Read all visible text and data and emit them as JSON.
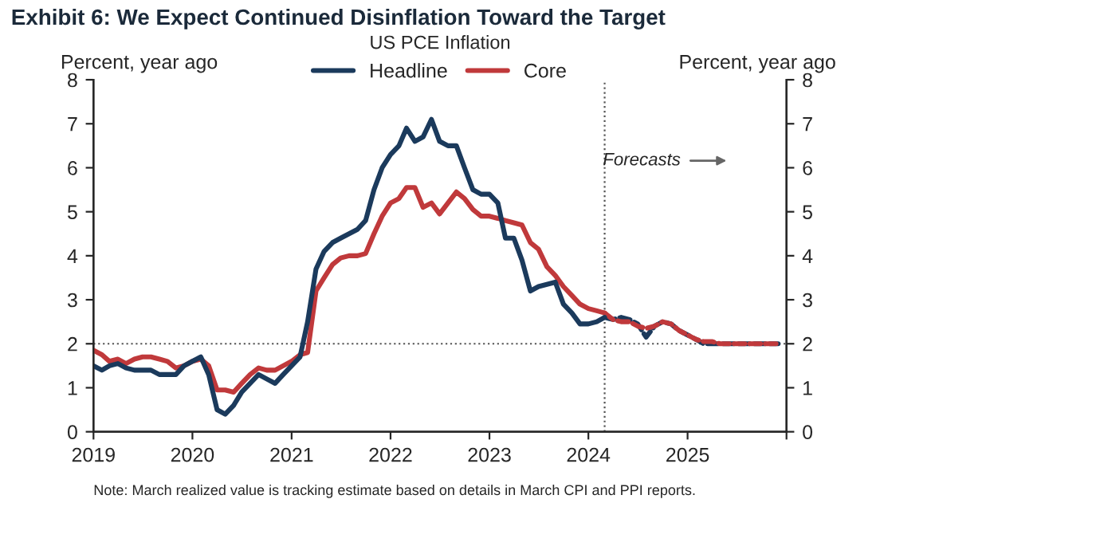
{
  "chart_data": {
    "type": "line",
    "title": "Exhibit 6: We Expect Continued Disinflation Toward the Target",
    "subtitle": "US PCE Inflation",
    "ylabel": "Percent, year ago",
    "y2label": "Percent, year ago",
    "annotations": [
      "Forecasts",
      "Note: March realized value is tracking estimate based on details in March CPI and PPI reports."
    ],
    "series": [
      {
        "name": "Headline",
        "color": "#1b3a5c",
        "line_style": "solid",
        "x": [
          "2019-01",
          "2019-02",
          "2019-03",
          "2019-04",
          "2019-05",
          "2019-06",
          "2019-07",
          "2019-08",
          "2019-09",
          "2019-10",
          "2019-11",
          "2019-12",
          "2020-01",
          "2020-02",
          "2020-03",
          "2020-04",
          "2020-05",
          "2020-06",
          "2020-07",
          "2020-08",
          "2020-09",
          "2020-10",
          "2020-11",
          "2020-12",
          "2021-01",
          "2021-02",
          "2021-03",
          "2021-04",
          "2021-05",
          "2021-06",
          "2021-07",
          "2021-08",
          "2021-09",
          "2021-10",
          "2021-11",
          "2021-12",
          "2022-01",
          "2022-02",
          "2022-03",
          "2022-04",
          "2022-05",
          "2022-06",
          "2022-07",
          "2022-08",
          "2022-09",
          "2022-10",
          "2022-11",
          "2022-12",
          "2023-01",
          "2023-02",
          "2023-03",
          "2023-04",
          "2023-05",
          "2023-06",
          "2023-07",
          "2023-08",
          "2023-09",
          "2023-10",
          "2023-11",
          "2023-12",
          "2024-01",
          "2024-02",
          "2024-03"
        ],
        "values": [
          1.5,
          1.4,
          1.5,
          1.55,
          1.45,
          1.4,
          1.4,
          1.4,
          1.3,
          1.3,
          1.3,
          1.5,
          1.6,
          1.7,
          1.3,
          0.5,
          0.4,
          0.6,
          0.9,
          1.1,
          1.3,
          1.2,
          1.1,
          1.3,
          1.5,
          1.7,
          2.5,
          3.7,
          4.1,
          4.3,
          4.4,
          4.5,
          4.6,
          4.8,
          5.5,
          6.0,
          6.3,
          6.5,
          6.9,
          6.6,
          6.7,
          7.1,
          6.6,
          6.5,
          6.5,
          6.0,
          5.5,
          5.4,
          5.4,
          5.2,
          4.4,
          4.4,
          3.9,
          3.2,
          3.3,
          3.35,
          3.4,
          2.9,
          2.7,
          2.45,
          2.45,
          2.5,
          2.6
        ]
      },
      {
        "name": "Core",
        "color": "#c0393b",
        "line_style": "solid",
        "x": [
          "2019-01",
          "2019-02",
          "2019-03",
          "2019-04",
          "2019-05",
          "2019-06",
          "2019-07",
          "2019-08",
          "2019-09",
          "2019-10",
          "2019-11",
          "2019-12",
          "2020-01",
          "2020-02",
          "2020-03",
          "2020-04",
          "2020-05",
          "2020-06",
          "2020-07",
          "2020-08",
          "2020-09",
          "2020-10",
          "2020-11",
          "2020-12",
          "2021-01",
          "2021-02",
          "2021-03",
          "2021-04",
          "2021-05",
          "2021-06",
          "2021-07",
          "2021-08",
          "2021-09",
          "2021-10",
          "2021-11",
          "2021-12",
          "2022-01",
          "2022-02",
          "2022-03",
          "2022-04",
          "2022-05",
          "2022-06",
          "2022-07",
          "2022-08",
          "2022-09",
          "2022-10",
          "2022-11",
          "2022-12",
          "2023-01",
          "2023-02",
          "2023-03",
          "2023-04",
          "2023-05",
          "2023-06",
          "2023-07",
          "2023-08",
          "2023-09",
          "2023-10",
          "2023-11",
          "2023-12",
          "2024-01",
          "2024-02",
          "2024-03"
        ],
        "values": [
          1.85,
          1.75,
          1.6,
          1.65,
          1.55,
          1.65,
          1.7,
          1.7,
          1.65,
          1.6,
          1.45,
          1.5,
          1.6,
          1.65,
          1.5,
          0.95,
          0.95,
          0.9,
          1.1,
          1.3,
          1.45,
          1.4,
          1.4,
          1.5,
          1.6,
          1.75,
          1.8,
          3.2,
          3.5,
          3.8,
          3.95,
          4.0,
          4.0,
          4.05,
          4.5,
          4.9,
          5.2,
          5.3,
          5.55,
          5.55,
          5.1,
          5.2,
          4.95,
          5.2,
          5.45,
          5.3,
          5.05,
          4.9,
          4.9,
          4.85,
          4.8,
          4.75,
          4.7,
          4.3,
          4.15,
          3.75,
          3.55,
          3.3,
          3.1,
          2.9,
          2.8,
          2.75,
          2.7
        ]
      },
      {
        "color": "#c0393b",
        "line_style": "dashed",
        "x": [
          "2024-03",
          "2024-04",
          "2024-05",
          "2024-06",
          "2024-07",
          "2024-08",
          "2024-09",
          "2024-10",
          "2024-11",
          "2024-12",
          "2025-01",
          "2025-02",
          "2025-03",
          "2025-04",
          "2025-05",
          "2025-06",
          "2025-07",
          "2025-08",
          "2025-09",
          "2025-10",
          "2025-11",
          "2025-12"
        ],
        "values": [
          2.7,
          2.55,
          2.5,
          2.5,
          2.4,
          2.35,
          2.4,
          2.5,
          2.45,
          2.3,
          2.2,
          2.1,
          2.05,
          2.05,
          2.0,
          2.0,
          2.0,
          2.0,
          2.0,
          2.0,
          2.0,
          2.0
        ]
      },
      {
        "color": "#1b3a5c",
        "line_style": "dashed",
        "x": [
          "2024-03",
          "2024-04",
          "2024-05",
          "2024-06",
          "2024-07",
          "2024-08",
          "2024-09",
          "2024-10",
          "2024-11",
          "2024-12",
          "2025-01",
          "2025-02",
          "2025-03",
          "2025-04",
          "2025-05",
          "2025-06",
          "2025-07",
          "2025-08",
          "2025-09",
          "2025-10",
          "2025-11",
          "2025-12"
        ],
        "values": [
          2.6,
          2.55,
          2.6,
          2.55,
          2.45,
          2.15,
          2.4,
          2.5,
          2.45,
          2.3,
          2.2,
          2.1,
          2.0,
          2.0,
          2.0,
          2.0,
          2.0,
          2.0,
          2.0,
          2.0,
          2.0,
          2.0
        ]
      }
    ],
    "xlim": [
      "2019",
      "2026"
    ],
    "xticks": [
      "2019",
      "2020",
      "2021",
      "2022",
      "2023",
      "2024",
      "2025",
      {
        "value": "2026",
        "label": null
      }
    ],
    "ylim": [
      0,
      8
    ],
    "yticks": [
      0,
      1,
      2,
      3,
      4,
      5,
      6,
      7,
      8
    ],
    "y2lim": [
      0,
      8
    ],
    "y2ticks": [
      0,
      1,
      2,
      3,
      4,
      5,
      6,
      7,
      8
    ],
    "ref_lines": [
      {
        "axis": "y",
        "value": 2,
        "color": "#555555",
        "line_style": "dotted"
      },
      {
        "axis": "x",
        "value": "2024-03",
        "color": "#555555",
        "line_style": "dotted"
      }
    ],
    "legend": "top",
    "grid": false,
    "marker": "none"
  }
}
